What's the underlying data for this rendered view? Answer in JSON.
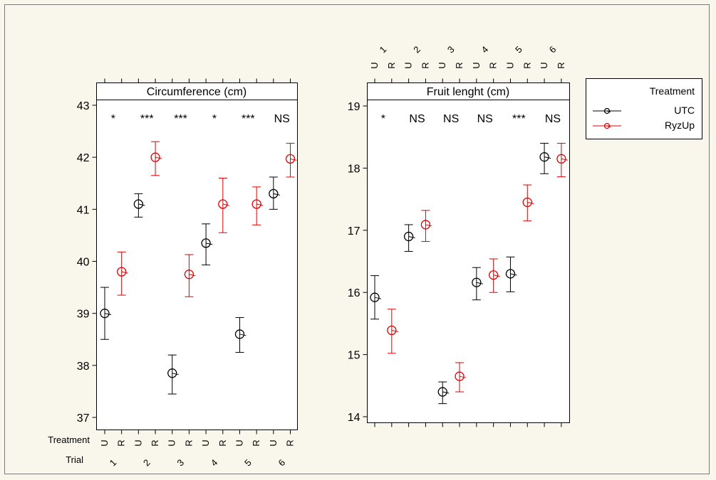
{
  "colors": {
    "background": "#f9f6ec",
    "UTC": "#000000",
    "RyzUp": "#e00000",
    "frame": "#000000"
  },
  "legend": {
    "title": "Treatment",
    "entries": [
      {
        "label": "UTC",
        "color": "#000000"
      },
      {
        "label": "RyzUp",
        "color": "#e00000"
      }
    ]
  },
  "axis_labels": {
    "treatment": "Treatment",
    "trial": "Trial"
  },
  "chart_data": [
    {
      "type": "interval",
      "title": "Circumference (cm)",
      "trials": [
        "1",
        "2",
        "3",
        "4",
        "5",
        "6"
      ],
      "treatment_codes": [
        "U",
        "R"
      ],
      "ylim": [
        37,
        43
      ],
      "yticks": [
        37,
        38,
        39,
        40,
        41,
        42,
        43
      ],
      "significance": [
        "*",
        "***",
        "***",
        "*",
        "***",
        "NS"
      ],
      "series": [
        {
          "name": "UTC",
          "code": "U",
          "means": [
            39.0,
            41.1,
            37.85,
            40.35,
            38.6,
            41.3
          ],
          "lower": [
            38.5,
            40.85,
            37.45,
            39.93,
            38.25,
            41.0
          ],
          "upper": [
            39.5,
            41.3,
            38.2,
            40.72,
            38.92,
            41.62
          ]
        },
        {
          "name": "RyzUp",
          "code": "R",
          "means": [
            39.8,
            42.0,
            39.75,
            41.1,
            41.1,
            41.97
          ],
          "lower": [
            39.35,
            41.65,
            39.32,
            40.55,
            40.7,
            41.62
          ],
          "upper": [
            40.18,
            42.3,
            40.13,
            41.6,
            41.43,
            42.27
          ]
        }
      ]
    },
    {
      "type": "interval",
      "title": "Fruit lenght (cm)",
      "trials": [
        "1",
        "2",
        "3",
        "4",
        "5",
        "6"
      ],
      "treatment_codes": [
        "U",
        "R"
      ],
      "ylim": [
        14,
        19
      ],
      "yticks": [
        14,
        15,
        16,
        17,
        18,
        19
      ],
      "significance": [
        "*",
        "NS",
        "NS",
        "NS",
        "***",
        "NS"
      ],
      "series": [
        {
          "name": "UTC",
          "code": "U",
          "means": [
            15.92,
            16.9,
            14.4,
            16.16,
            16.3,
            18.18
          ],
          "lower": [
            15.57,
            16.66,
            14.21,
            15.88,
            16.01,
            17.91
          ],
          "upper": [
            16.27,
            17.09,
            14.56,
            16.4,
            16.57,
            18.4
          ]
        },
        {
          "name": "RyzUp",
          "code": "R",
          "means": [
            15.39,
            17.09,
            14.65,
            16.28,
            17.45,
            18.15
          ],
          "lower": [
            15.02,
            16.82,
            14.4,
            16.0,
            17.15,
            17.86
          ],
          "upper": [
            15.73,
            17.32,
            14.87,
            16.54,
            17.73,
            18.4
          ]
        }
      ]
    }
  ]
}
